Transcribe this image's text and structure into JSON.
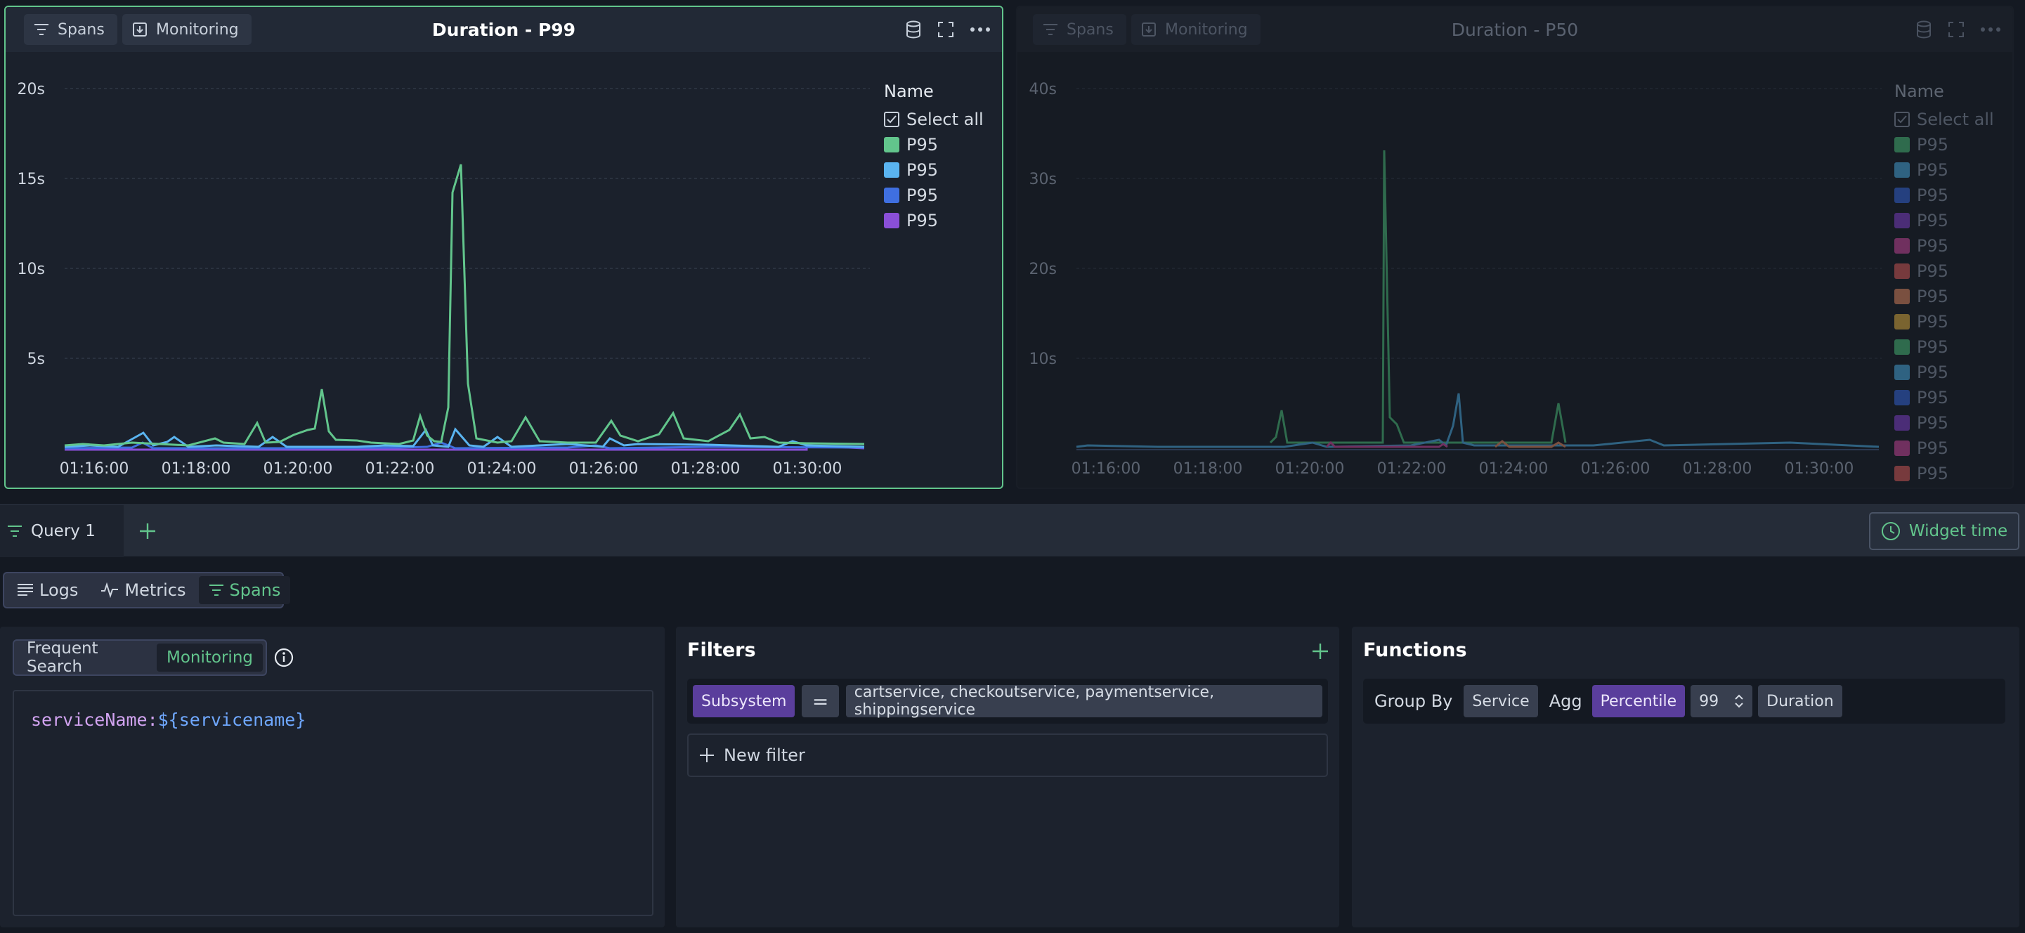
{
  "widgets": [
    {
      "title": "Duration - P99",
      "source_button": "Spans",
      "monitoring_button": "Monitoring",
      "y_ticks": [
        "20s",
        "15s",
        "10s",
        "5s"
      ],
      "x_ticks": [
        "01:16:00",
        "01:18:00",
        "01:20:00",
        "01:22:00",
        "01:24:00",
        "01:26:00",
        "01:28:00",
        "01:30:00"
      ],
      "legend": {
        "title": "Name",
        "select_all": "Select all",
        "items": [
          {
            "label": "P95",
            "color": "#62c58c"
          },
          {
            "label": "P95",
            "color": "#5ab4f0"
          },
          {
            "label": "P95",
            "color": "#3f6fe0"
          },
          {
            "label": "P95",
            "color": "#8a4fd8"
          }
        ]
      }
    },
    {
      "title": "Duration - P50",
      "source_button": "Spans",
      "monitoring_button": "Monitoring",
      "y_ticks": [
        "40s",
        "30s",
        "20s",
        "10s"
      ],
      "x_ticks": [
        "01:16:00",
        "01:18:00",
        "01:20:00",
        "01:22:00",
        "01:24:00",
        "01:26:00",
        "01:28:00",
        "01:30:00"
      ],
      "legend": {
        "title": "Name",
        "select_all": "Select all",
        "items": [
          {
            "label": "P95",
            "color": "#2f6b4d"
          },
          {
            "label": "P95",
            "color": "#2f6281"
          },
          {
            "label": "P95",
            "color": "#25407f"
          },
          {
            "label": "P95",
            "color": "#4b2d77"
          },
          {
            "label": "P95",
            "color": "#70305f"
          },
          {
            "label": "P95",
            "color": "#773a3d"
          },
          {
            "label": "P95",
            "color": "#7a5040"
          },
          {
            "label": "P95",
            "color": "#7a6430"
          },
          {
            "label": "P95",
            "color": "#2f6b4d"
          },
          {
            "label": "P95",
            "color": "#2f6281"
          },
          {
            "label": "P95",
            "color": "#25407f"
          },
          {
            "label": "P95",
            "color": "#4b2d77"
          },
          {
            "label": "P95",
            "color": "#70305f"
          },
          {
            "label": "P95",
            "color": "#773a3d"
          }
        ]
      }
    }
  ],
  "query_bar": {
    "tab_label": "Query 1",
    "widget_time_label": "Widget time"
  },
  "sources": {
    "logs": "Logs",
    "metrics": "Metrics",
    "spans": "Spans"
  },
  "search_panel": {
    "frequent_search": "Frequent Search",
    "monitoring": "Monitoring",
    "query_key": "serviceName:",
    "query_value": "${servicename}"
  },
  "filters_panel": {
    "title": "Filters",
    "field": "Subsystem",
    "operator": "=",
    "values": "cartservice, checkoutservice, paymentservice, shippingservice",
    "new_filter": "New filter"
  },
  "functions_panel": {
    "title": "Functions",
    "group_by_label": "Group By",
    "group_by_value": "Service",
    "agg_label": "Agg",
    "agg_value": "Percentile",
    "percentile_value": "99",
    "field": "Duration"
  }
}
